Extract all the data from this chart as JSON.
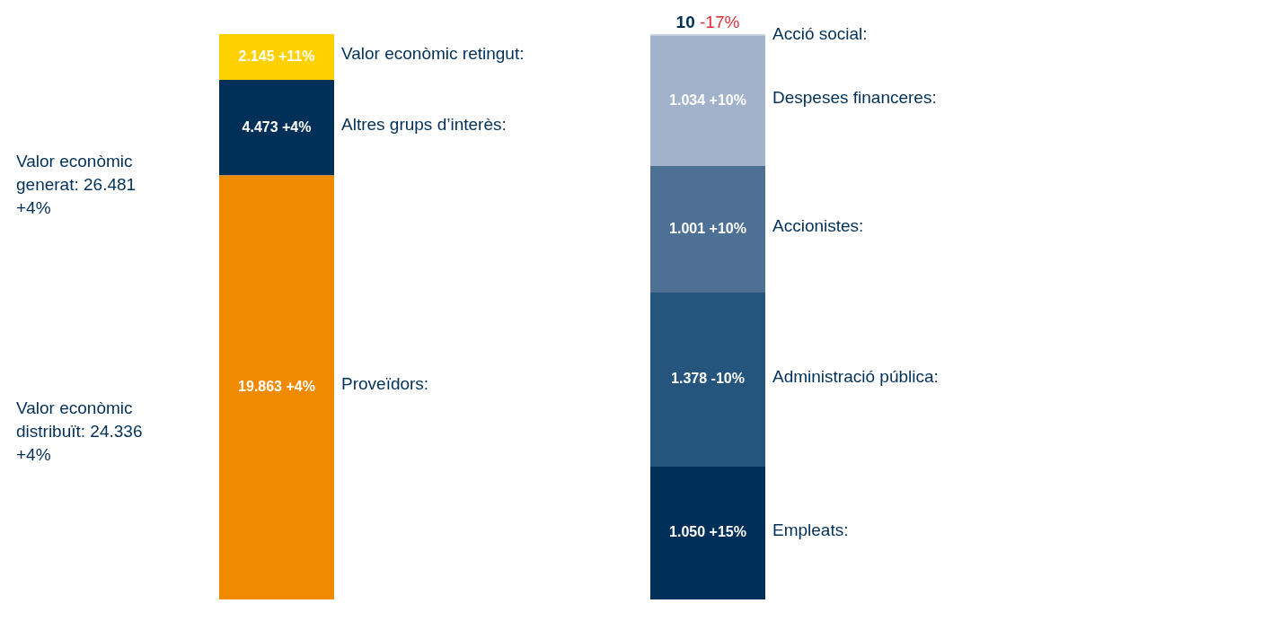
{
  "chart_data": [
    {
      "type": "bar",
      "stacked": true,
      "categories": [
        null
      ],
      "annotations": [
        "Valor econòmic generat: 26.481 +4%",
        "Valor econòmic distribuït: 24.336 +4%"
      ],
      "series": [
        {
          "name": "Proveïdors:",
          "color": "#f08a00",
          "values": [
            19863
          ],
          "value_labels": [
            "19.863 +4%"
          ]
        },
        {
          "name": "Altres grups d’interès:",
          "color": "#003057",
          "values": [
            4473
          ],
          "value_labels": [
            "4.473 +4%"
          ]
        },
        {
          "name": "Valor econòmic retingut:",
          "color": "#ffd100",
          "values": [
            2145
          ],
          "value_labels": [
            "2.145 +11%"
          ]
        }
      ]
    },
    {
      "type": "bar",
      "stacked": true,
      "categories": [
        null
      ],
      "series": [
        {
          "name": "Empleats:",
          "color": "#00305a",
          "values": [
            1050
          ],
          "value_labels": [
            "1.050 +15%"
          ]
        },
        {
          "name": "Administració pública:",
          "color": "#25557d",
          "values": [
            1378
          ],
          "value_labels": [
            "1.378 -10%"
          ]
        },
        {
          "name": "Accionistes:",
          "color": "#4e7094",
          "values": [
            1001
          ],
          "value_labels": [
            "1.001 +10%"
          ]
        },
        {
          "name": "Despeses financeres:",
          "color": "#a2b2cb",
          "values": [
            1034
          ],
          "value_labels": [
            "1.034 +10%"
          ]
        },
        {
          "name": "Acció social:",
          "color": "#c9d3e2",
          "values": [
            10
          ],
          "value_labels": [
            "10 -17%"
          ]
        }
      ]
    }
  ]
}
